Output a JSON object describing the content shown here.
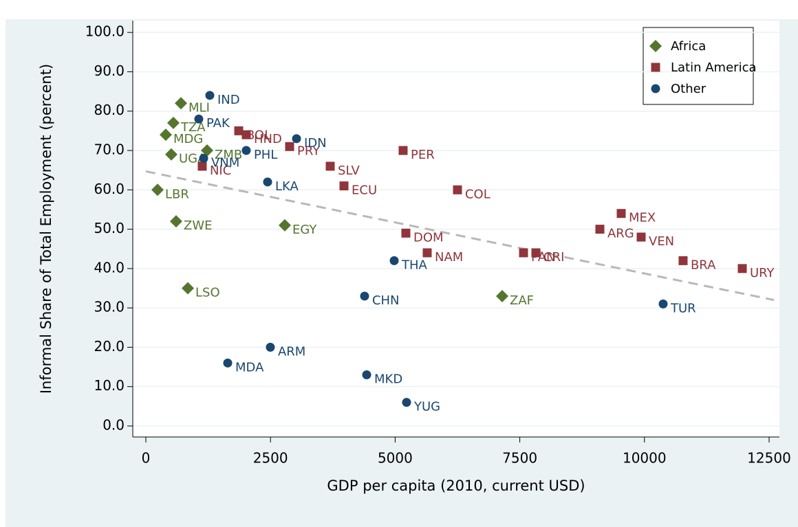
{
  "chart_data": {
    "type": "scatter",
    "x_label": "GDP per capita (2010, current USD)",
    "y_label": "Informal Share of Total Employment (percent)",
    "xlim": [
      -262,
      12707
    ],
    "ylim": [
      -2.8,
      103
    ],
    "xticks": [
      0,
      2500,
      5000,
      7500,
      10000,
      12500
    ],
    "yticks": [
      {
        "value": 0,
        "label": "0.0"
      },
      {
        "value": 10,
        "label": "10.0"
      },
      {
        "value": 20,
        "label": "20.0"
      },
      {
        "value": 30,
        "label": "30.0"
      },
      {
        "value": 40,
        "label": "40.0"
      },
      {
        "value": 50,
        "label": "50.0"
      },
      {
        "value": 60,
        "label": "60.0"
      },
      {
        "value": 70,
        "label": "70.0"
      },
      {
        "value": 80,
        "label": "80.0"
      },
      {
        "value": 90,
        "label": "90.0"
      },
      {
        "value": 100,
        "label": "100.0"
      }
    ],
    "grid": true,
    "legend": "top-right",
    "series": [
      {
        "name": "Africa",
        "color": "#55752f",
        "marker": "diamond",
        "labels": [
          "MLI",
          "TZA",
          "MDG",
          "UGA",
          "ZMB",
          "LBR",
          "ZWE",
          "EGY",
          "LSO",
          "ZAF"
        ],
        "x": [
          704,
          552,
          400,
          510,
          1228,
          235,
          607,
          2787,
          842,
          7147
        ],
        "values": [
          82,
          77,
          74,
          69,
          70,
          60,
          52,
          51,
          35,
          33
        ]
      },
      {
        "name": "Latin America",
        "color": "#90353b",
        "marker": "square",
        "labels": [
          "BOL",
          "HND",
          "NIC",
          "PRY",
          "SLV",
          "ECU",
          "PER",
          "COL",
          "DOM",
          "NAM",
          "PAN",
          "CRI",
          "MEX",
          "ARG",
          "VEN",
          "BRA",
          "URY"
        ],
        "x": [
          1863,
          2014,
          1131,
          2884,
          3698,
          3974,
          5160,
          6250,
          5215,
          5643,
          7575,
          7823,
          9534,
          9106,
          9934,
          10775,
          11962
        ],
        "values": [
          75,
          74,
          66,
          71,
          66,
          61,
          70,
          60,
          49,
          44,
          44,
          44,
          54,
          50,
          48,
          42,
          40
        ]
      },
      {
        "name": "Other",
        "color": "#1a476f",
        "marker": "circle",
        "labels": [
          "IND",
          "PAK",
          "IDN",
          "PHL",
          "VNM",
          "LKA",
          "THA",
          "CHN",
          "ARM",
          "MDA",
          "MKD",
          "YUG",
          "TUR"
        ],
        "x": [
          1283,
          1062,
          3022,
          2014,
          1159,
          2442,
          4981,
          4387,
          2497,
          1642,
          4429,
          5229,
          10375
        ],
        "values": [
          84,
          78,
          73,
          70,
          68,
          62,
          42,
          33,
          20,
          16,
          13,
          6,
          31
        ]
      }
    ],
    "fit_line": {
      "color": "#b8b8b8",
      "x": [
        0,
        12600
      ],
      "values": [
        64.7,
        32
      ]
    }
  }
}
